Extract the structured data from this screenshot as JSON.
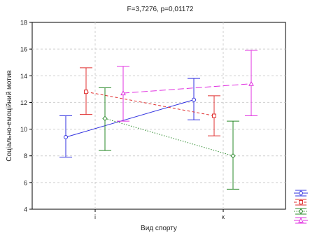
{
  "chart_data": {
    "type": "line",
    "title": "F=3,7276, p=0,01172",
    "xlabel": "Вид спорту",
    "ylabel": "Соціально-емоційний мотив",
    "categories": [
      "і",
      "к"
    ],
    "ylim": [
      4,
      18
    ],
    "yticks": [
      4,
      6,
      8,
      10,
      12,
      14,
      16,
      18
    ],
    "grid": true,
    "legend_position": "bottom-right",
    "series": [
      {
        "color": "#3030e0",
        "dash": "solid",
        "marker": "circle",
        "values": [
          9.4,
          12.2
        ],
        "lower": [
          7.9,
          10.7
        ],
        "upper": [
          11.0,
          13.8
        ]
      },
      {
        "color": "#e03030",
        "dash": "dashed",
        "marker": "square",
        "values": [
          12.8,
          11.0
        ],
        "lower": [
          11.1,
          9.5
        ],
        "upper": [
          14.6,
          12.5
        ]
      },
      {
        "color": "#2a8a2a",
        "dash": "dotted",
        "marker": "diamond",
        "values": [
          10.8,
          8.0
        ],
        "lower": [
          8.4,
          5.5
        ],
        "upper": [
          13.1,
          10.6
        ]
      },
      {
        "color": "#e030e0",
        "dash": "longdash",
        "marker": "triangle",
        "values": [
          12.7,
          13.4
        ],
        "lower": [
          10.6,
          11.0
        ],
        "upper": [
          14.7,
          15.9
        ]
      }
    ]
  }
}
